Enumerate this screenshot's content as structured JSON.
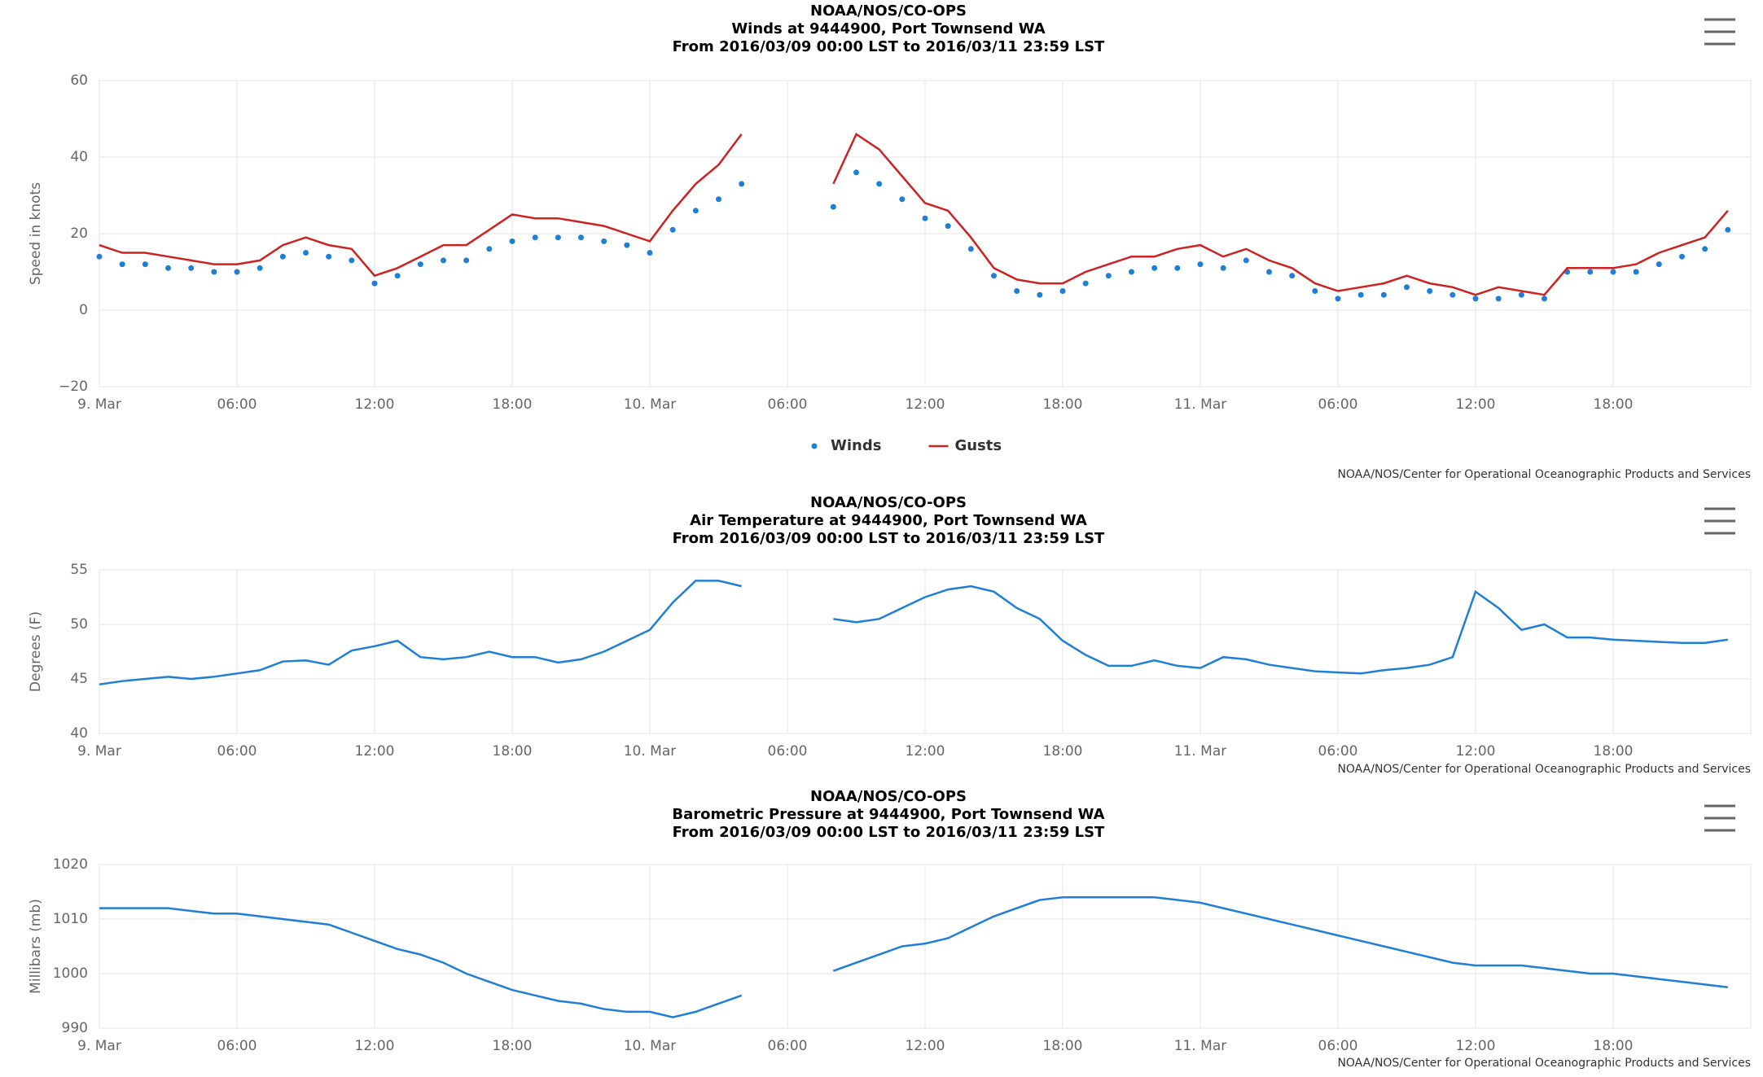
{
  "chart_data": [
    {
      "type": "line",
      "title": "NOAA/NOS/CO-OPS",
      "subtitle": "Winds at 9444900, Port Townsend WA",
      "date_range": "From 2016/03/09 00:00 LST to 2016/03/11 23:59 LST",
      "y_label": "Speed in knots",
      "credits": "NOAA/NOS/Center for Operational Oceanographic Products and Services",
      "legend": true,
      "grid": true,
      "xlim": [
        0,
        72
      ],
      "xticks": [
        {
          "value": 0,
          "label": "9. Mar"
        },
        {
          "value": 6,
          "label": "06:00"
        },
        {
          "value": 12,
          "label": "12:00"
        },
        {
          "value": 18,
          "label": "18:00"
        },
        {
          "value": 24,
          "label": "10. Mar"
        },
        {
          "value": 30,
          "label": "06:00"
        },
        {
          "value": 36,
          "label": "12:00"
        },
        {
          "value": 42,
          "label": "18:00"
        },
        {
          "value": 48,
          "label": "11. Mar"
        },
        {
          "value": 54,
          "label": "06:00"
        },
        {
          "value": 60,
          "label": "12:00"
        },
        {
          "value": 66,
          "label": "18:00"
        }
      ],
      "ylim": [
        -20,
        60
      ],
      "yticks": [
        {
          "value": -20,
          "label": "−20"
        },
        0,
        20,
        40,
        60
      ],
      "x": [
        0,
        1,
        2,
        3,
        4,
        5,
        6,
        7,
        8,
        9,
        10,
        11,
        12,
        13,
        14,
        15,
        16,
        17,
        18,
        19,
        20,
        21,
        22,
        23,
        24,
        25,
        26,
        27,
        28,
        29,
        30,
        31,
        32,
        33,
        34,
        35,
        36,
        37,
        38,
        39,
        40,
        41,
        42,
        43,
        44,
        45,
        46,
        47,
        48,
        49,
        50,
        51,
        52,
        53,
        54,
        55,
        56,
        57,
        58,
        59,
        60,
        61,
        62,
        63,
        64,
        65,
        66,
        67,
        68,
        69,
        70,
        71
      ],
      "series": [
        {
          "name": "Winds",
          "color": "#1f7fd6",
          "mode": "markers",
          "values": [
            14,
            12,
            12,
            11,
            11,
            10,
            10,
            11,
            14,
            15,
            14,
            13,
            7,
            9,
            12,
            13,
            13,
            16,
            18,
            19,
            19,
            19,
            18,
            17,
            15,
            21,
            26,
            29,
            33,
            null,
            null,
            null,
            27,
            36,
            33,
            29,
            24,
            22,
            16,
            9,
            5,
            4,
            5,
            7,
            9,
            10,
            11,
            11,
            12,
            11,
            13,
            10,
            9,
            5,
            3,
            4,
            4,
            6,
            5,
            4,
            3,
            3,
            4,
            3,
            10,
            10,
            10,
            10,
            12,
            14,
            16,
            21
          ]
        },
        {
          "name": "Gusts",
          "color": "#cc2222",
          "mode": "line",
          "values": [
            17,
            15,
            15,
            14,
            13,
            12,
            12,
            13,
            17,
            19,
            17,
            16,
            9,
            11,
            14,
            17,
            17,
            21,
            25,
            24,
            24,
            23,
            22,
            20,
            18,
            26,
            33,
            38,
            46,
            null,
            null,
            null,
            33,
            46,
            42,
            35,
            28,
            26,
            19,
            11,
            8,
            7,
            7,
            10,
            12,
            14,
            14,
            16,
            17,
            14,
            16,
            13,
            11,
            7,
            5,
            6,
            7,
            9,
            7,
            6,
            4,
            6,
            5,
            4,
            11,
            11,
            11,
            12,
            15,
            17,
            19,
            26
          ]
        }
      ]
    },
    {
      "type": "line",
      "title": "NOAA/NOS/CO-OPS",
      "subtitle": "Air Temperature at 9444900, Port Townsend WA",
      "date_range": "From 2016/03/09 00:00 LST to 2016/03/11 23:59 LST",
      "y_label": "Degrees (F)",
      "credits": "NOAA/NOS/Center for Operational Oceanographic Products and Services",
      "legend": false,
      "grid": true,
      "xlim": [
        0,
        72
      ],
      "xticks": [
        {
          "value": 0,
          "label": "9. Mar"
        },
        {
          "value": 6,
          "label": "06:00"
        },
        {
          "value": 12,
          "label": "12:00"
        },
        {
          "value": 18,
          "label": "18:00"
        },
        {
          "value": 24,
          "label": "10. Mar"
        },
        {
          "value": 30,
          "label": "06:00"
        },
        {
          "value": 36,
          "label": "12:00"
        },
        {
          "value": 42,
          "label": "18:00"
        },
        {
          "value": 48,
          "label": "11. Mar"
        },
        {
          "value": 54,
          "label": "06:00"
        },
        {
          "value": 60,
          "label": "12:00"
        },
        {
          "value": 66,
          "label": "18:00"
        }
      ],
      "ylim": [
        40,
        55
      ],
      "yticks": [
        40,
        45,
        50,
        55
      ],
      "x": [
        0,
        1,
        2,
        3,
        4,
        5,
        6,
        7,
        8,
        9,
        10,
        11,
        12,
        13,
        14,
        15,
        16,
        17,
        18,
        19,
        20,
        21,
        22,
        23,
        24,
        25,
        26,
        27,
        28,
        29,
        30,
        31,
        32,
        33,
        34,
        35,
        36,
        37,
        38,
        39,
        40,
        41,
        42,
        43,
        44,
        45,
        46,
        47,
        48,
        49,
        50,
        51,
        52,
        53,
        54,
        55,
        56,
        57,
        58,
        59,
        60,
        61,
        62,
        63,
        64,
        65,
        66,
        67,
        68,
        69,
        70,
        71
      ],
      "series": [
        {
          "name": "Air Temperature",
          "color": "#1f7fd6",
          "mode": "line",
          "values": [
            44.5,
            44.8,
            45,
            45.2,
            45,
            45.2,
            45.5,
            45.8,
            46.6,
            46.7,
            46.3,
            47.6,
            48,
            48.5,
            47,
            46.8,
            47,
            47.5,
            47,
            47,
            46.5,
            46.8,
            47.5,
            48.5,
            49.5,
            52,
            54,
            54,
            53.5,
            null,
            null,
            null,
            50.5,
            50.2,
            50.5,
            51.5,
            52.5,
            53.2,
            53.5,
            53,
            51.5,
            50.5,
            48.5,
            47.2,
            46.2,
            46.2,
            46.7,
            46.2,
            46,
            47,
            46.8,
            46.3,
            46,
            45.7,
            45.6,
            45.5,
            45.8,
            46,
            46.3,
            47,
            53,
            51.5,
            49.5,
            50,
            48.8,
            48.8,
            48.6,
            48.5,
            48.4,
            48.3,
            48.3,
            48.6
          ]
        }
      ]
    },
    {
      "type": "line",
      "title": "NOAA/NOS/CO-OPS",
      "subtitle": "Barometric Pressure at 9444900, Port Townsend WA",
      "date_range": "From 2016/03/09 00:00 LST to 2016/03/11 23:59 LST",
      "y_label": "Millibars (mb)",
      "credits": "NOAA/NOS/Center for Operational Oceanographic Products and Services",
      "legend": false,
      "grid": true,
      "xlim": [
        0,
        72
      ],
      "xticks": [
        {
          "value": 0,
          "label": "9. Mar"
        },
        {
          "value": 6,
          "label": "06:00"
        },
        {
          "value": 12,
          "label": "12:00"
        },
        {
          "value": 18,
          "label": "18:00"
        },
        {
          "value": 24,
          "label": "10. Mar"
        },
        {
          "value": 30,
          "label": "06:00"
        },
        {
          "value": 36,
          "label": "12:00"
        },
        {
          "value": 42,
          "label": "18:00"
        },
        {
          "value": 48,
          "label": "11. Mar"
        },
        {
          "value": 54,
          "label": "06:00"
        },
        {
          "value": 60,
          "label": "12:00"
        },
        {
          "value": 66,
          "label": "18:00"
        }
      ],
      "ylim": [
        990,
        1020
      ],
      "yticks": [
        990,
        1000,
        1010,
        1020
      ],
      "x": [
        0,
        1,
        2,
        3,
        4,
        5,
        6,
        7,
        8,
        9,
        10,
        11,
        12,
        13,
        14,
        15,
        16,
        17,
        18,
        19,
        20,
        21,
        22,
        23,
        24,
        25,
        26,
        27,
        28,
        29,
        30,
        31,
        32,
        33,
        34,
        35,
        36,
        37,
        38,
        39,
        40,
        41,
        42,
        43,
        44,
        45,
        46,
        47,
        48,
        49,
        50,
        51,
        52,
        53,
        54,
        55,
        56,
        57,
        58,
        59,
        60,
        61,
        62,
        63,
        64,
        65,
        66,
        67,
        68,
        69,
        70,
        71
      ],
      "series": [
        {
          "name": "Barometric Pressure",
          "color": "#1f7fd6",
          "mode": "line",
          "values": [
            1012,
            1012,
            1012,
            1012,
            1011.5,
            1011,
            1011,
            1010.5,
            1010,
            1009.5,
            1009,
            1007.5,
            1006,
            1004.5,
            1003.5,
            1002,
            1000,
            998.5,
            997,
            996,
            995,
            994.5,
            993.5,
            993,
            993,
            992,
            993,
            994.5,
            996,
            null,
            null,
            null,
            1000.5,
            1002,
            1003.5,
            1005,
            1005.5,
            1006.5,
            1008.5,
            1010.5,
            1012,
            1013.5,
            1014,
            1014,
            1014,
            1014,
            1014,
            1013.5,
            1013,
            1012,
            1011,
            1010,
            1009,
            1008,
            1007,
            1006,
            1005,
            1004,
            1003,
            1002,
            1001.5,
            1001.5,
            1001.5,
            1001,
            1000.5,
            1000,
            1000,
            999.5,
            999,
            998.5,
            998,
            997.5
          ]
        }
      ]
    }
  ]
}
